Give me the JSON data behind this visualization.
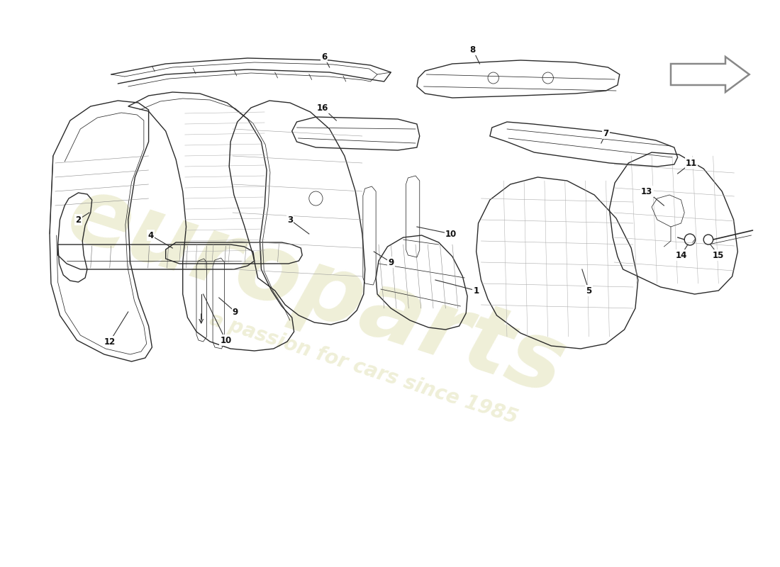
{
  "bg_color": "#ffffff",
  "line_color": "#2a2a2a",
  "wm_color": "#efefd8",
  "wm_text1": "europarts",
  "wm_text2": "a passion for cars since 1985",
  "figsize": [
    11.0,
    8.0
  ],
  "dpi": 100,
  "lw": 1.0,
  "lw_thin": 0.55,
  "lw_bold": 1.5
}
